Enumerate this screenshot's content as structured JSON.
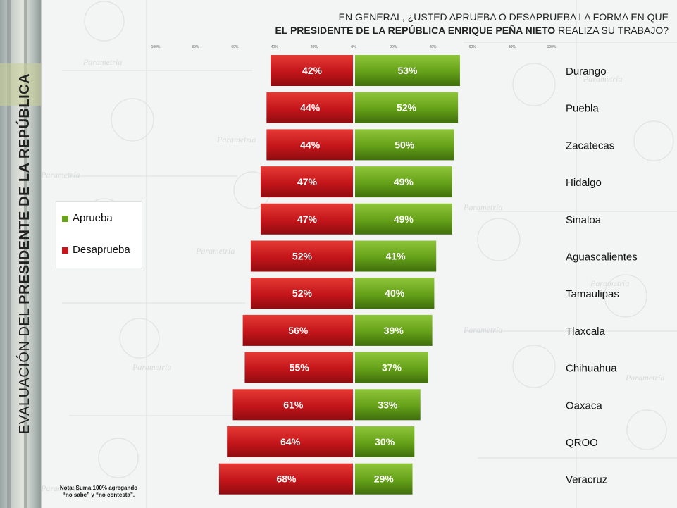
{
  "header": {
    "line1": "EN GENERAL, ¿USTED APRUEBA O DESAPRUEBA LA FORMA EN QUE",
    "line2_bold": "EL PRESIDENTE DE LA REPÚBLICA ENRIQUE PEÑA NIETO",
    "line2_rest": " REALIZA SU TRABAJO?"
  },
  "side_title": {
    "normal": "EVALUACIÓN DEL ",
    "bold": "PRESIDENTE DE LA REPÚBLICA"
  },
  "legend": {
    "aprueba": "Aprueba",
    "desaprueba": "Desaprueba"
  },
  "note": {
    "line1": "Nota: Suma 100% agregando",
    "line2": "“no sabe” y “no contesta”."
  },
  "watermark_text": "Parametría",
  "colors": {
    "aprueba": "#6aa31b",
    "desaprueba": "#c8151b"
  },
  "chart_data": {
    "type": "bar",
    "orientation": "horizontal-diverging",
    "tick_labels": [
      "100%",
      "80%",
      "60%",
      "40%",
      "20%",
      "0%",
      "20%",
      "40%",
      "60%",
      "80%",
      "100%"
    ],
    "xlim": [
      -100,
      100
    ],
    "categories": [
      "Durango",
      "Puebla",
      "Zacatecas",
      "Hidalgo",
      "Sinaloa",
      "Aguascalientes",
      "Tamaulipas",
      "Tlaxcala",
      "Chihuahua",
      "Oaxaca",
      "QROO",
      "Veracruz"
    ],
    "series": [
      {
        "name": "Desaprueba",
        "values": [
          42,
          44,
          44,
          47,
          47,
          52,
          52,
          56,
          55,
          61,
          64,
          68
        ]
      },
      {
        "name": "Aprueba",
        "values": [
          53,
          52,
          50,
          49,
          49,
          41,
          40,
          39,
          37,
          33,
          30,
          29
        ]
      }
    ],
    "value_labels": {
      "Desaprueba": [
        "42%",
        "44%",
        "44%",
        "47%",
        "47%",
        "52%",
        "52%",
        "56%",
        "55%",
        "61%",
        "64%",
        "68%"
      ],
      "Aprueba": [
        "53%",
        "52%",
        "50%",
        "49%",
        "49%",
        "41%",
        "40%",
        "39%",
        "37%",
        "33%",
        "30%",
        "29%"
      ]
    }
  }
}
